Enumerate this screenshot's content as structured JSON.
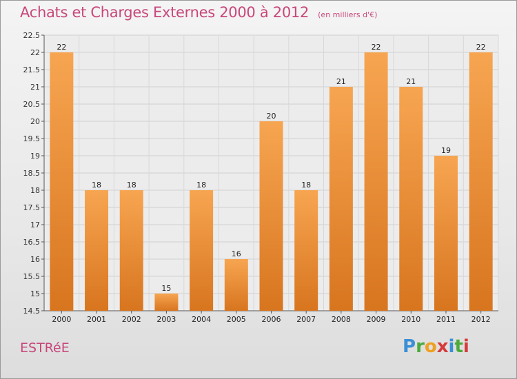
{
  "header": {
    "title": "Achats et Charges Externes 2000 à 2012",
    "subtitle": "(en milliers d'€)"
  },
  "footer": {
    "commune": "ESTRéE",
    "logo_letters": [
      "P",
      "r",
      "o",
      "x",
      "i",
      "t",
      "i"
    ],
    "logo_colors": [
      "#3a8fd6",
      "#4caa3a",
      "#f0a020",
      "#d63a3a",
      "#3a8fd6",
      "#4caa3a",
      "#d63a3a"
    ]
  },
  "colors": {
    "bar_light": "#f7a551",
    "bar_dark": "#d8751f",
    "accent": "#c8477a"
  },
  "chart_data": {
    "type": "bar",
    "categories": [
      "2000",
      "2001",
      "2002",
      "2003",
      "2004",
      "2005",
      "2006",
      "2007",
      "2008",
      "2009",
      "2010",
      "2011",
      "2012"
    ],
    "values": [
      22,
      18,
      18,
      15,
      18,
      16,
      20,
      18,
      21,
      22,
      21,
      19,
      22
    ],
    "ylim": [
      14.5,
      22.5
    ],
    "yticks": [
      "14.5",
      "15",
      "15.5",
      "16",
      "16.5",
      "17",
      "17.5",
      "18",
      "18.5",
      "19",
      "19.5",
      "20",
      "20.5",
      "21",
      "21.5",
      "22",
      "22.5"
    ],
    "grid": true
  }
}
